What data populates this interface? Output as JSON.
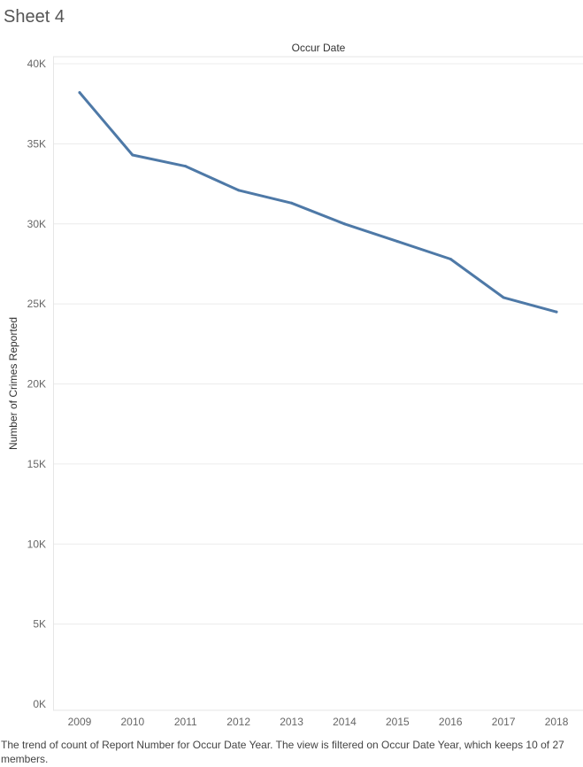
{
  "sheet": {
    "title": "Sheet 4"
  },
  "chart_data": {
    "type": "line",
    "title": "Occur Date",
    "xlabel": "",
    "ylabel": "Number of Crimes Reported",
    "categories": [
      "2009",
      "2010",
      "2011",
      "2012",
      "2013",
      "2014",
      "2015",
      "2016",
      "2017",
      "2018"
    ],
    "values": [
      38200,
      34300,
      33600,
      32100,
      31300,
      30000,
      28900,
      27800,
      25400,
      24500
    ],
    "ylim": [
      0,
      40000
    ],
    "yticks": [
      0,
      5000,
      10000,
      15000,
      20000,
      25000,
      30000,
      35000,
      40000
    ],
    "ytick_labels": [
      "0K",
      "5K",
      "10K",
      "15K",
      "20K",
      "25K",
      "30K",
      "35K",
      "40K"
    ],
    "grid": true,
    "line_color": "#4e79a7"
  },
  "caption": "The trend of count of Report Number for Occur Date Year. The view is filtered on Occur Date Year, which keeps 10 of 27 members."
}
